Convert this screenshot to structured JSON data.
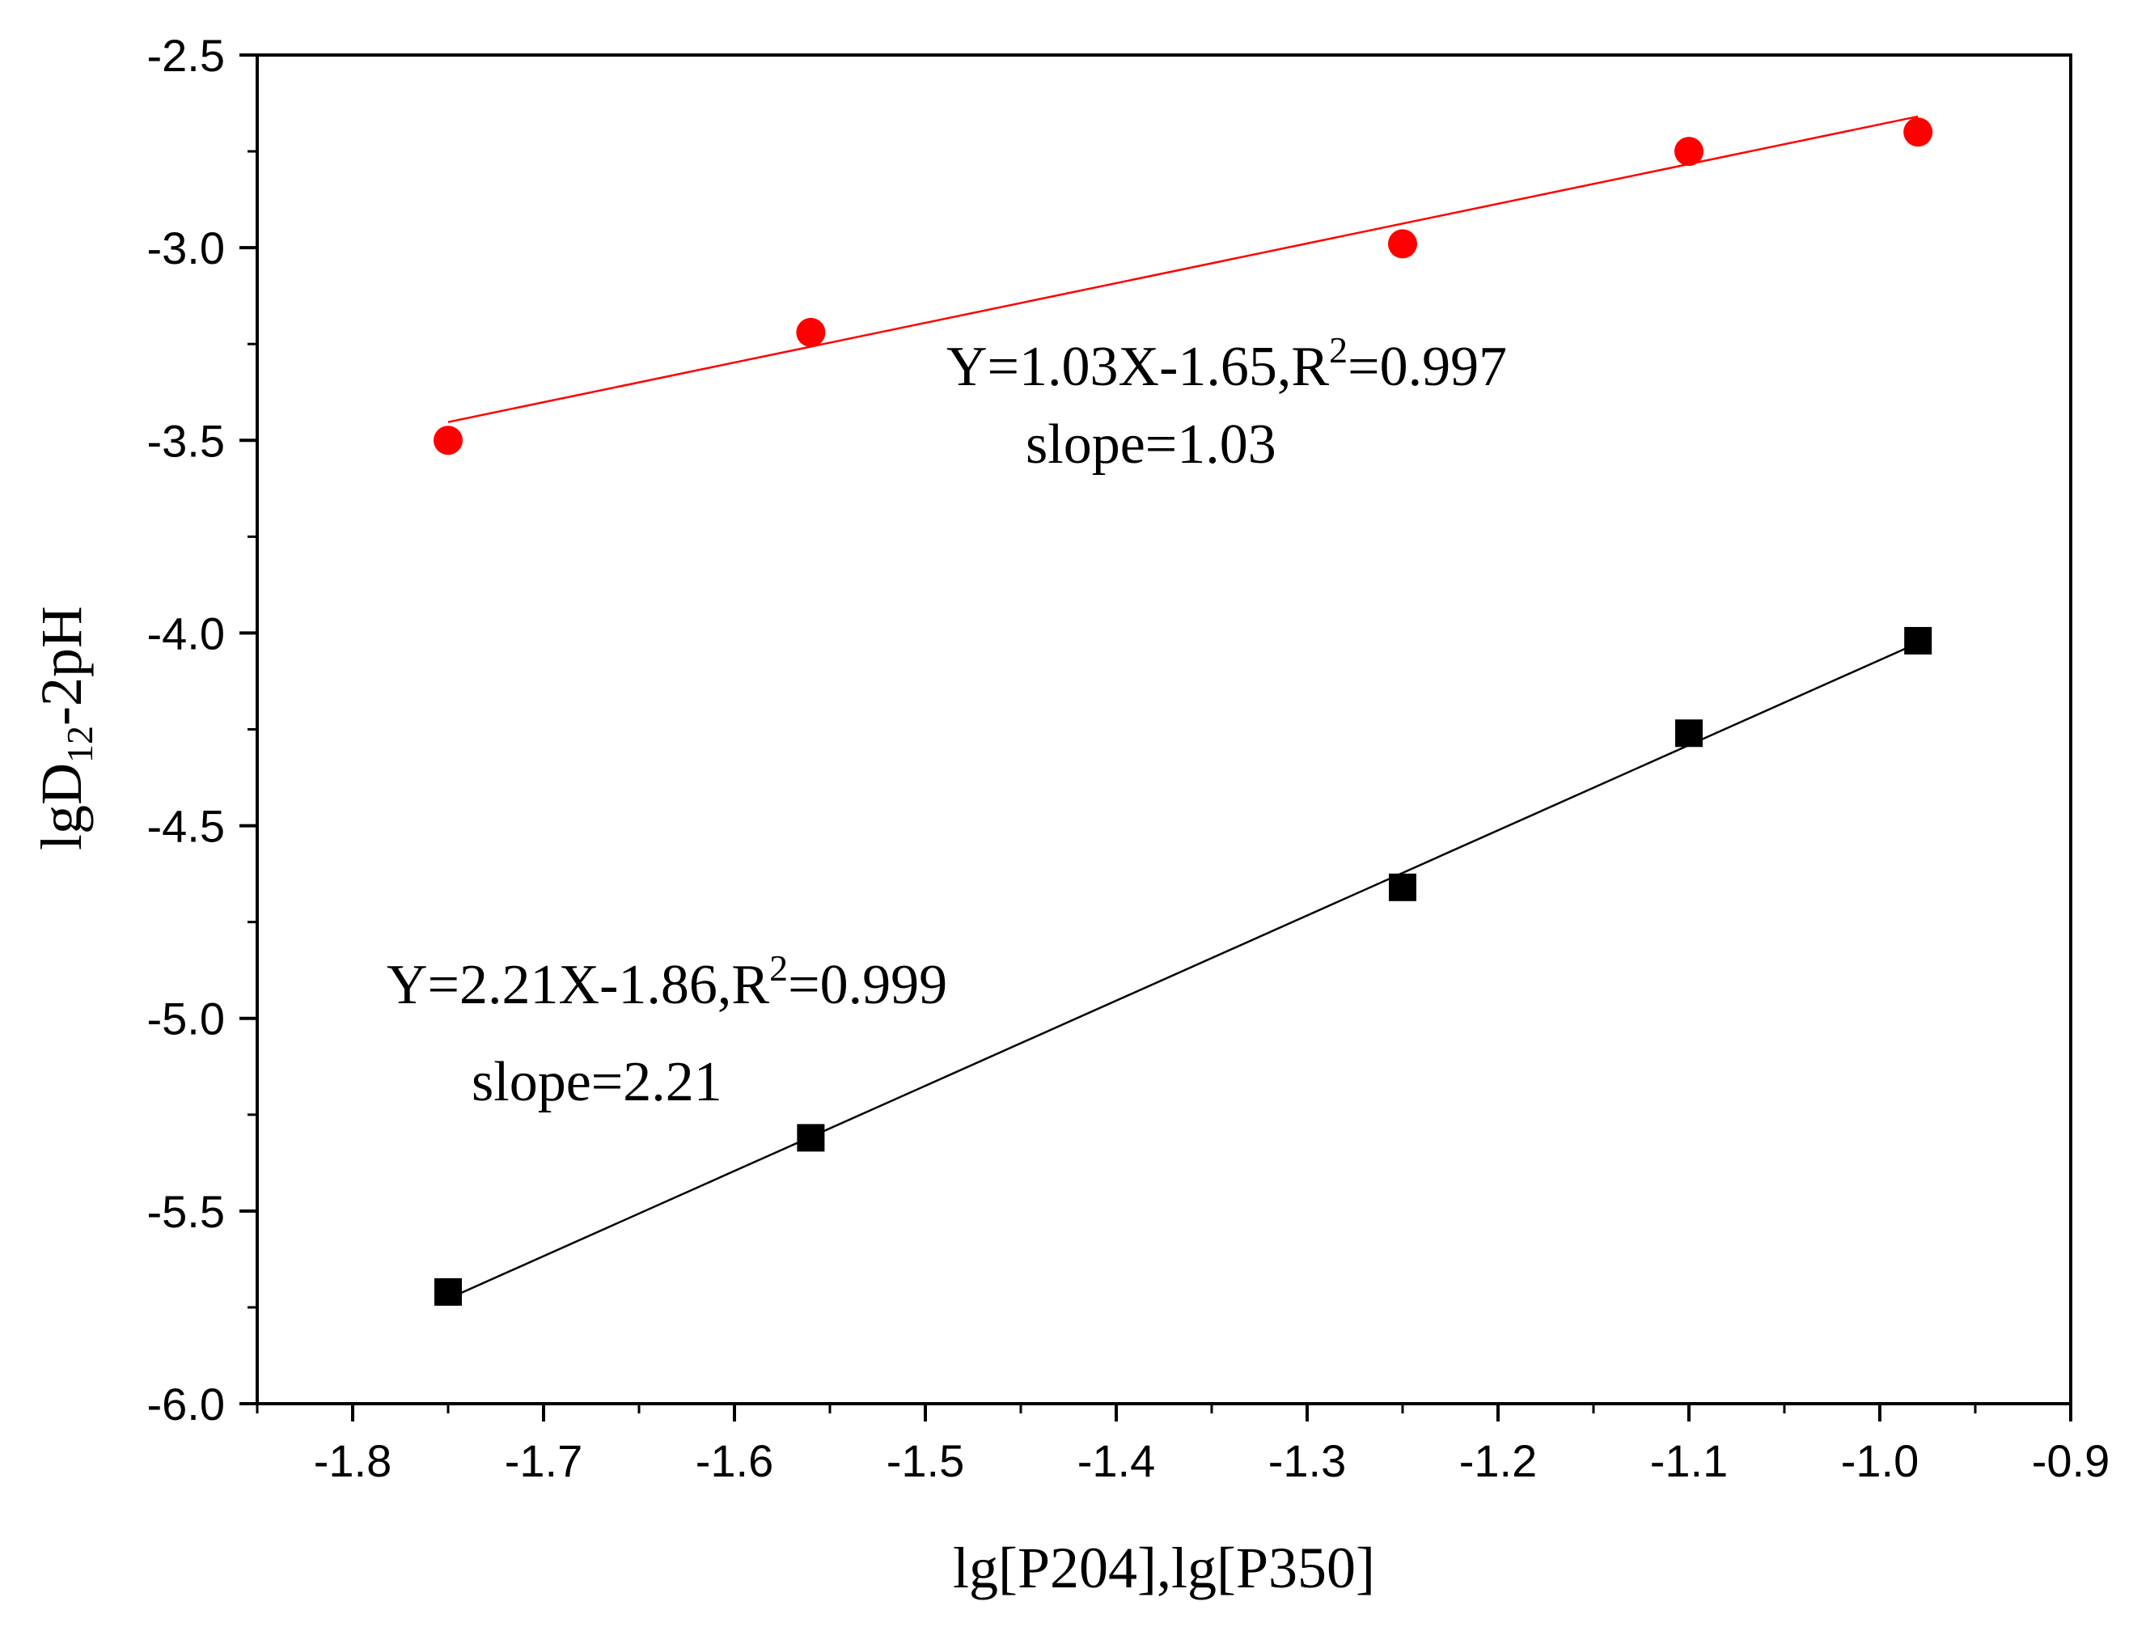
{
  "chart_data": {
    "type": "scatter",
    "title": "",
    "xlabel": "lg[P204],lg[P350]",
    "ylabel": {
      "main": "lgD",
      "sub": "12",
      "tail": "-2pH"
    },
    "xlim": [
      -1.85,
      -0.9
    ],
    "ylim": [
      -6.0,
      -2.5
    ],
    "x_ticks": [
      -1.8,
      -1.7,
      -1.6,
      -1.5,
      -1.4,
      -1.3,
      -1.2,
      -1.1,
      -1.0,
      -0.9
    ],
    "x_tick_labels": [
      "-1.8",
      "-1.7",
      "-1.6",
      "-1.5",
      "-1.4",
      "-1.3",
      "-1.2",
      "-1.1",
      "-1.0",
      "-0.9"
    ],
    "y_ticks": [
      -2.5,
      -3.0,
      -3.5,
      -4.0,
      -4.5,
      -5.0,
      -5.5,
      -6.0
    ],
    "y_tick_labels": [
      "-2.5",
      "-3.0",
      "-3.5",
      "-4.0",
      "-4.5",
      "-5.0",
      "-5.5",
      "-6.0"
    ],
    "grid": false,
    "series": [
      {
        "name": "P350",
        "marker": "circle",
        "color": "#ff0000",
        "x": [
          -1.75,
          -1.56,
          -1.25,
          -1.1,
          -0.98
        ],
        "y": [
          -3.5,
          -3.22,
          -2.99,
          -2.75,
          -2.7
        ],
        "fit": {
          "slope": 1.03,
          "intercept": -1.65,
          "x_range": [
            -1.75,
            -0.98
          ]
        },
        "annotation": {
          "line1_main": "Y=1.03X-1.65,R",
          "line1_sup": "2",
          "line1_tail": "=0.997",
          "line2": "slope=1.03"
        }
      },
      {
        "name": "P204",
        "marker": "square",
        "color": "#000000",
        "x": [
          -1.75,
          -1.56,
          -1.25,
          -1.1,
          -0.98
        ],
        "y": [
          -5.71,
          -5.31,
          -4.66,
          -4.26,
          -4.02
        ],
        "fit": {
          "slope": 2.21,
          "intercept": -1.86,
          "x_range": [
            -1.75,
            -0.98
          ]
        },
        "annotation": {
          "line1_main": "Y=2.21X-1.86,R",
          "line1_sup": "2",
          "line1_tail": "=0.999",
          "line2": "slope=2.21"
        }
      }
    ]
  }
}
